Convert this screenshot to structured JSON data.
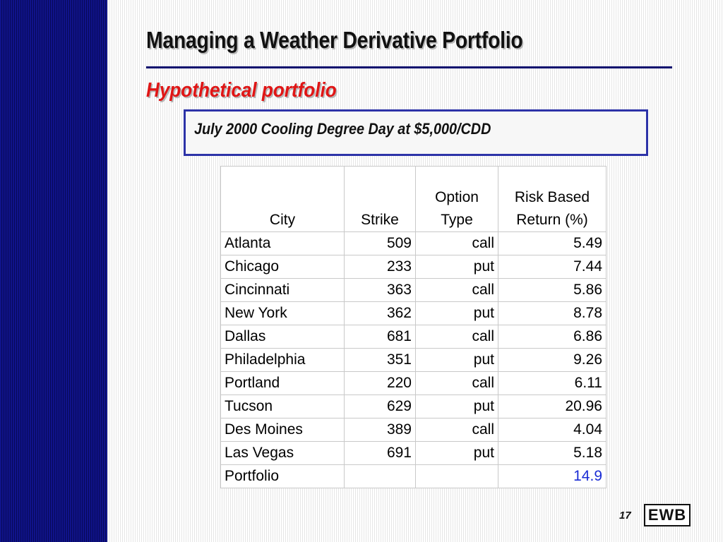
{
  "slide": {
    "title": "Managing a Weather Derivative Portfolio",
    "subtitle": "Hypothetical portfolio",
    "callout": "July 2000 Cooling Degree Day at $5,000/CDD",
    "page_number": "17",
    "logo": "EWB"
  },
  "table": {
    "headers": {
      "city": "City",
      "strike": "Strike",
      "type_line1": "Option",
      "type_line2": "Type",
      "return_line1": "Risk Based",
      "return_line2": "Return (%)"
    },
    "rows": [
      {
        "city": "Atlanta",
        "strike": "509",
        "type": "call",
        "ret": "5.49"
      },
      {
        "city": "Chicago",
        "strike": "233",
        "type": "put",
        "ret": "7.44"
      },
      {
        "city": "Cincinnati",
        "strike": "363",
        "type": "call",
        "ret": "5.86"
      },
      {
        "city": "New York",
        "strike": "362",
        "type": "put",
        "ret": "8.78"
      },
      {
        "city": "Dallas",
        "strike": "681",
        "type": "call",
        "ret": "6.86"
      },
      {
        "city": "Philadelphia",
        "strike": "351",
        "type": "put",
        "ret": "9.26"
      },
      {
        "city": "Portland",
        "strike": "220",
        "type": "call",
        "ret": "6.11"
      },
      {
        "city": "Tucson",
        "strike": "629",
        "type": "put",
        "ret": "20.96"
      },
      {
        "city": "Des Moines",
        "strike": "389",
        "type": "call",
        "ret": "4.04"
      },
      {
        "city": "Las Vegas",
        "strike": "691",
        "type": "put",
        "ret": "5.18"
      },
      {
        "city": "Portfolio",
        "strike": "",
        "type": "",
        "ret": "14.9"
      }
    ]
  },
  "colors": {
    "sidebar": "#0b0d6e",
    "subtitle": "#e01515",
    "callout_border": "#2d33a8",
    "highlight_value": "#1a2cd4"
  }
}
